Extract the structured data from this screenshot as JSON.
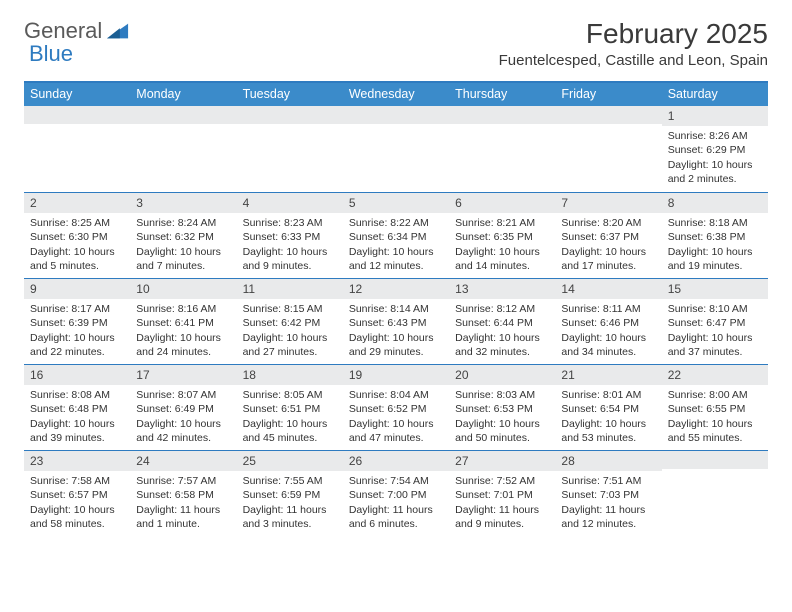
{
  "brand": {
    "part1": "General",
    "part2": "Blue"
  },
  "title": "February 2025",
  "location": "Fuentelcesped, Castille and Leon, Spain",
  "colors": {
    "header_bg": "#3b8bca",
    "rule": "#2e7bc0",
    "shade": "#e9eaeb",
    "text": "#333333"
  },
  "daysOfWeek": [
    "Sunday",
    "Monday",
    "Tuesday",
    "Wednesday",
    "Thursday",
    "Friday",
    "Saturday"
  ],
  "layout": {
    "columns": 7,
    "rows": 5,
    "firstDayOffset": 6
  },
  "cells": [
    {
      "n": 1,
      "sr": "8:26 AM",
      "ss": "6:29 PM",
      "dl": "10 hours and 2 minutes."
    },
    {
      "n": 2,
      "sr": "8:25 AM",
      "ss": "6:30 PM",
      "dl": "10 hours and 5 minutes."
    },
    {
      "n": 3,
      "sr": "8:24 AM",
      "ss": "6:32 PM",
      "dl": "10 hours and 7 minutes."
    },
    {
      "n": 4,
      "sr": "8:23 AM",
      "ss": "6:33 PM",
      "dl": "10 hours and 9 minutes."
    },
    {
      "n": 5,
      "sr": "8:22 AM",
      "ss": "6:34 PM",
      "dl": "10 hours and 12 minutes."
    },
    {
      "n": 6,
      "sr": "8:21 AM",
      "ss": "6:35 PM",
      "dl": "10 hours and 14 minutes."
    },
    {
      "n": 7,
      "sr": "8:20 AM",
      "ss": "6:37 PM",
      "dl": "10 hours and 17 minutes."
    },
    {
      "n": 8,
      "sr": "8:18 AM",
      "ss": "6:38 PM",
      "dl": "10 hours and 19 minutes."
    },
    {
      "n": 9,
      "sr": "8:17 AM",
      "ss": "6:39 PM",
      "dl": "10 hours and 22 minutes."
    },
    {
      "n": 10,
      "sr": "8:16 AM",
      "ss": "6:41 PM",
      "dl": "10 hours and 24 minutes."
    },
    {
      "n": 11,
      "sr": "8:15 AM",
      "ss": "6:42 PM",
      "dl": "10 hours and 27 minutes."
    },
    {
      "n": 12,
      "sr": "8:14 AM",
      "ss": "6:43 PM",
      "dl": "10 hours and 29 minutes."
    },
    {
      "n": 13,
      "sr": "8:12 AM",
      "ss": "6:44 PM",
      "dl": "10 hours and 32 minutes."
    },
    {
      "n": 14,
      "sr": "8:11 AM",
      "ss": "6:46 PM",
      "dl": "10 hours and 34 minutes."
    },
    {
      "n": 15,
      "sr": "8:10 AM",
      "ss": "6:47 PM",
      "dl": "10 hours and 37 minutes."
    },
    {
      "n": 16,
      "sr": "8:08 AM",
      "ss": "6:48 PM",
      "dl": "10 hours and 39 minutes."
    },
    {
      "n": 17,
      "sr": "8:07 AM",
      "ss": "6:49 PM",
      "dl": "10 hours and 42 minutes."
    },
    {
      "n": 18,
      "sr": "8:05 AM",
      "ss": "6:51 PM",
      "dl": "10 hours and 45 minutes."
    },
    {
      "n": 19,
      "sr": "8:04 AM",
      "ss": "6:52 PM",
      "dl": "10 hours and 47 minutes."
    },
    {
      "n": 20,
      "sr": "8:03 AM",
      "ss": "6:53 PM",
      "dl": "10 hours and 50 minutes."
    },
    {
      "n": 21,
      "sr": "8:01 AM",
      "ss": "6:54 PM",
      "dl": "10 hours and 53 minutes."
    },
    {
      "n": 22,
      "sr": "8:00 AM",
      "ss": "6:55 PM",
      "dl": "10 hours and 55 minutes."
    },
    {
      "n": 23,
      "sr": "7:58 AM",
      "ss": "6:57 PM",
      "dl": "10 hours and 58 minutes."
    },
    {
      "n": 24,
      "sr": "7:57 AM",
      "ss": "6:58 PM",
      "dl": "11 hours and 1 minute."
    },
    {
      "n": 25,
      "sr": "7:55 AM",
      "ss": "6:59 PM",
      "dl": "11 hours and 3 minutes."
    },
    {
      "n": 26,
      "sr": "7:54 AM",
      "ss": "7:00 PM",
      "dl": "11 hours and 6 minutes."
    },
    {
      "n": 27,
      "sr": "7:52 AM",
      "ss": "7:01 PM",
      "dl": "11 hours and 9 minutes."
    },
    {
      "n": 28,
      "sr": "7:51 AM",
      "ss": "7:03 PM",
      "dl": "11 hours and 12 minutes."
    }
  ],
  "labels": {
    "sunrise": "Sunrise: ",
    "sunset": "Sunset: ",
    "daylight": "Daylight: "
  }
}
